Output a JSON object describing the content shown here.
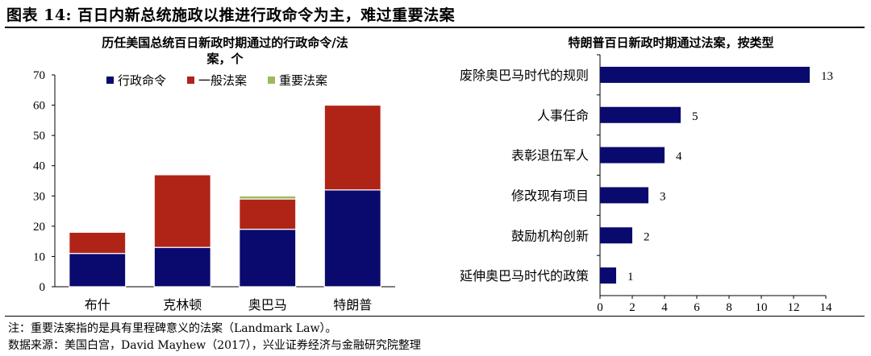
{
  "figure_title": "图表 14:  百日内新总统施政以推进行政命令为主，难过重要法案",
  "chart_data": [
    {
      "type": "bar",
      "stacked": true,
      "title": "历任美国总统百日新政时期通过的行政命令/法案，个",
      "title_lines": [
        "历任美国总统百日新政时期通过的行政命令/法",
        "案，个"
      ],
      "categories": [
        "布什",
        "克林顿",
        "奥巴马",
        "特朗普"
      ],
      "series": [
        {
          "name": "行政命令",
          "color": "#0a0a6e",
          "values": [
            11,
            13,
            19,
            32
          ]
        },
        {
          "name": "一般法案",
          "color": "#b02418",
          "values": [
            7,
            24,
            10,
            28
          ]
        },
        {
          "name": "重要法案",
          "color": "#9bbb59",
          "values": [
            0,
            0,
            1,
            0
          ]
        }
      ],
      "ylim": [
        0,
        70
      ],
      "yticks": [
        0,
        10,
        20,
        30,
        40,
        50,
        60,
        70
      ],
      "legend": "top",
      "grid": false
    },
    {
      "type": "bar",
      "orientation": "horizontal",
      "title": "特朗普百日新政时期通过法案，按类型",
      "categories": [
        "废除奥巴马时代的规则",
        "人事任命",
        "表彰退伍军人",
        "修改现有项目",
        "鼓励机构创新",
        "延伸奥巴马时代的政策"
      ],
      "values": [
        13,
        5,
        4,
        3,
        2,
        1
      ],
      "color": "#0a0a6e",
      "xlim": [
        0,
        14
      ],
      "xticks": [
        0,
        2,
        4,
        6,
        8,
        10,
        12,
        14
      ],
      "grid": false
    }
  ],
  "notes": {
    "note": "注：重要法案指的是具有里程碑意义的法案（Landmark Law）。",
    "source": "数据来源：美国白宫，David Mayhew（2017），兴业证券经济与金融研究院整理"
  }
}
